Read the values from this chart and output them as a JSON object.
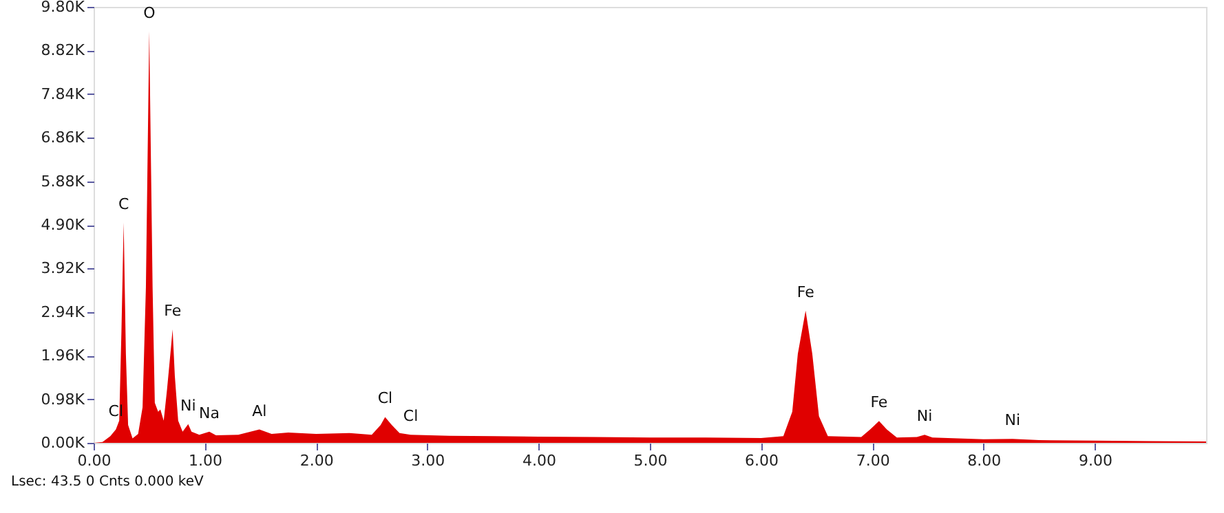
{
  "chart_data": {
    "type": "area",
    "legend": false,
    "grid": false,
    "x": [
      0.0,
      0.08,
      0.15,
      0.2,
      0.23,
      0.25,
      0.27,
      0.29,
      0.31,
      0.35,
      0.4,
      0.44,
      0.47,
      0.5,
      0.53,
      0.55,
      0.58,
      0.6,
      0.63,
      0.66,
      0.69,
      0.71,
      0.73,
      0.76,
      0.8,
      0.85,
      0.88,
      0.95,
      1.04,
      1.1,
      1.3,
      1.49,
      1.6,
      1.75,
      2.0,
      2.3,
      2.5,
      2.58,
      2.62,
      2.68,
      2.75,
      2.85,
      3.2,
      3.6,
      4.0,
      4.5,
      5.0,
      5.5,
      6.0,
      6.2,
      6.28,
      6.33,
      6.4,
      6.46,
      6.52,
      6.6,
      6.9,
      6.98,
      7.06,
      7.13,
      7.22,
      7.4,
      7.47,
      7.54,
      8.0,
      8.26,
      8.5,
      9.0,
      9.5,
      10.0
    ],
    "series": [
      {
        "color": "#e00000",
        "values": [
          0,
          20,
          150,
          300,
          500,
          2500,
          4950,
          2000,
          400,
          100,
          200,
          800,
          3500,
          9250,
          3500,
          900,
          700,
          750,
          500,
          1200,
          2000,
          2550,
          1500,
          500,
          250,
          420,
          250,
          180,
          250,
          170,
          180,
          300,
          200,
          230,
          200,
          220,
          180,
          400,
          580,
          400,
          220,
          180,
          160,
          150,
          140,
          130,
          120,
          120,
          110,
          150,
          700,
          2000,
          2970,
          2000,
          600,
          150,
          130,
          300,
          490,
          300,
          120,
          130,
          180,
          120,
          80,
          90,
          60,
          50,
          40,
          30
        ]
      }
    ],
    "xlim": [
      0,
      10
    ],
    "xticks": [
      {
        "value": 0,
        "label": "0.00"
      },
      {
        "value": 1,
        "label": "1.00"
      },
      {
        "value": 2,
        "label": "2.00"
      },
      {
        "value": 3,
        "label": "3.00"
      },
      {
        "value": 4,
        "label": "4.00"
      },
      {
        "value": 5,
        "label": "5.00"
      },
      {
        "value": 6,
        "label": "6.00"
      },
      {
        "value": 7,
        "label": "7.00"
      },
      {
        "value": 8,
        "label": "8.00"
      },
      {
        "value": 9,
        "label": "9.00"
      }
    ],
    "ylim": [
      0,
      9800
    ],
    "yticks": [
      {
        "value": 0,
        "label": "0.00K"
      },
      {
        "value": 980,
        "label": "0.98K"
      },
      {
        "value": 1960,
        "label": "1.96K"
      },
      {
        "value": 2940,
        "label": "2.94K"
      },
      {
        "value": 3920,
        "label": "3.92K"
      },
      {
        "value": 4900,
        "label": "4.90K"
      },
      {
        "value": 5880,
        "label": "5.88K"
      },
      {
        "value": 6860,
        "label": "6.86K"
      },
      {
        "value": 7840,
        "label": "7.84K"
      },
      {
        "value": 8820,
        "label": "8.82K"
      },
      {
        "value": 9800,
        "label": "9.80K"
      }
    ],
    "annotations": [
      {
        "text": "Cl",
        "x": 0.2,
        "y": 300
      },
      {
        "text": "C",
        "x": 0.27,
        "y": 4950
      },
      {
        "text": "O",
        "x": 0.5,
        "y": 9250
      },
      {
        "text": "Fe",
        "x": 0.71,
        "y": 2550
      },
      {
        "text": "Ni",
        "x": 0.85,
        "y": 420
      },
      {
        "text": "Na",
        "x": 1.04,
        "y": 250
      },
      {
        "text": "Al",
        "x": 1.49,
        "y": 300
      },
      {
        "text": "Cl",
        "x": 2.62,
        "y": 580
      },
      {
        "text": "Cl",
        "x": 2.85,
        "y": 180
      },
      {
        "text": "Fe",
        "x": 6.4,
        "y": 2970
      },
      {
        "text": "Fe",
        "x": 7.06,
        "y": 490
      },
      {
        "text": "Ni",
        "x": 7.47,
        "y": 180
      },
      {
        "text": "Ni",
        "x": 8.26,
        "y": 90
      },
      "Lsec: 43.5 0 Cnts  0.000 keV"
    ]
  }
}
